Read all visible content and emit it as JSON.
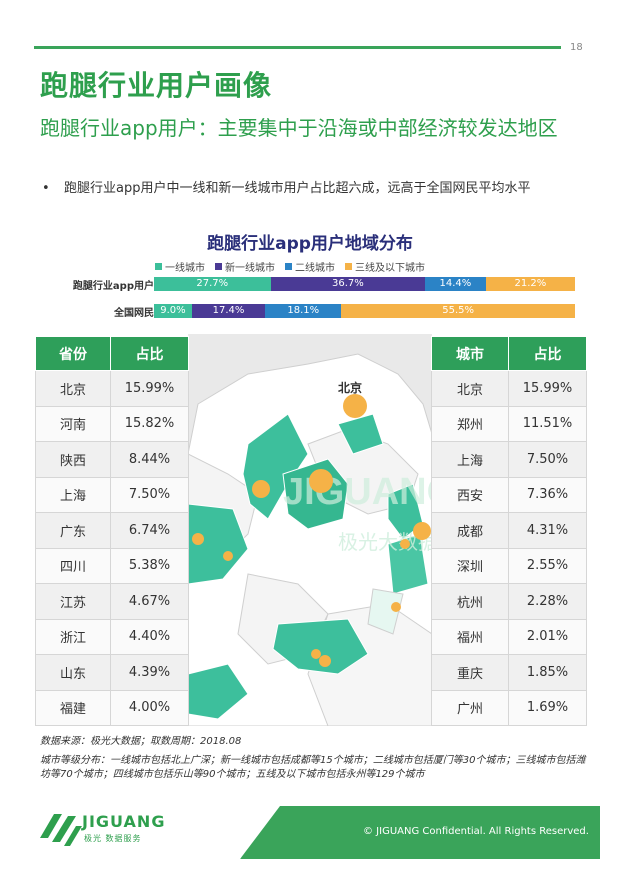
{
  "page": {
    "number": "18",
    "title": "跑腿行业用户画像",
    "subtitle": "跑腿行业app用户：主要集中于沿海或中部经济较发达地区",
    "bullet_mark": "•",
    "bullet": "跑腿行业app用户中一线和新一线城市用户占比超六成，远高于全国网民平均水平"
  },
  "chart_data": {
    "type": "bar",
    "stacked": true,
    "orientation": "horizontal",
    "title": "跑腿行业app用户地域分布",
    "categories": [
      "跑腿行业app用户",
      "全国网民"
    ],
    "series": [
      {
        "name": "一线城市",
        "color": "#3cbf9a",
        "values": [
          27.7,
          9.0
        ],
        "labels": [
          "27.7%",
          "9.0%"
        ]
      },
      {
        "name": "新一线城市",
        "color": "#4a3a95",
        "values": [
          36.7,
          17.4
        ],
        "labels": [
          "36.7%",
          "17.4%"
        ]
      },
      {
        "name": "二线城市",
        "color": "#2b83c6",
        "values": [
          14.4,
          18.1
        ],
        "labels": [
          "14.4%",
          "18.1%"
        ]
      },
      {
        "name": "三线及以下城市",
        "color": "#f5b247",
        "values": [
          21.2,
          55.5
        ],
        "labels": [
          "21.2%",
          "55.5%"
        ]
      }
    ],
    "xlim": [
      0,
      100
    ]
  },
  "province_table": {
    "headers": [
      "省份",
      "占比"
    ],
    "rows": [
      [
        "北京",
        "15.99%"
      ],
      [
        "河南",
        "15.82%"
      ],
      [
        "陕西",
        "8.44%"
      ],
      [
        "上海",
        "7.50%"
      ],
      [
        "广东",
        "6.74%"
      ],
      [
        "四川",
        "5.38%"
      ],
      [
        "江苏",
        "4.67%"
      ],
      [
        "浙江",
        "4.40%"
      ],
      [
        "山东",
        "4.39%"
      ],
      [
        "福建",
        "4.00%"
      ]
    ]
  },
  "city_table": {
    "headers": [
      "城市",
      "占比"
    ],
    "rows": [
      [
        "北京",
        "15.99%"
      ],
      [
        "郑州",
        "11.51%"
      ],
      [
        "上海",
        "7.50%"
      ],
      [
        "西安",
        "7.36%"
      ],
      [
        "成都",
        "4.31%"
      ],
      [
        "深圳",
        "2.55%"
      ],
      [
        "杭州",
        "2.28%"
      ],
      [
        "福州",
        "2.01%"
      ],
      [
        "重庆",
        "1.85%"
      ],
      [
        "广州",
        "1.69%"
      ]
    ]
  },
  "map": {
    "label": "北京",
    "watermark_en": "JIGUANG",
    "watermark_cn": "极光大数据"
  },
  "source": "数据来源：极光大数据；取数周期：2018.08",
  "note": "城市等级分布：一线城市包括北上广深；新一线城市包括成都等15个城市；二线城市包括厦门等30个城市；三线城市包括潍坊等70个城市；四线城市包括乐山等90个城市；五线及以下城市包括永州等129个城市",
  "footer": {
    "copyright": "© JIGUANG Confidential. All Rights Reserved.",
    "logo_name": "JIGUANG",
    "logo_sub": "极光 数据服务"
  },
  "colors": {
    "brand_green": "#2e9f4d",
    "table_header": "#2e9f5a",
    "map_highlight": "#3dbf9c",
    "bubble": "#f5b247"
  }
}
